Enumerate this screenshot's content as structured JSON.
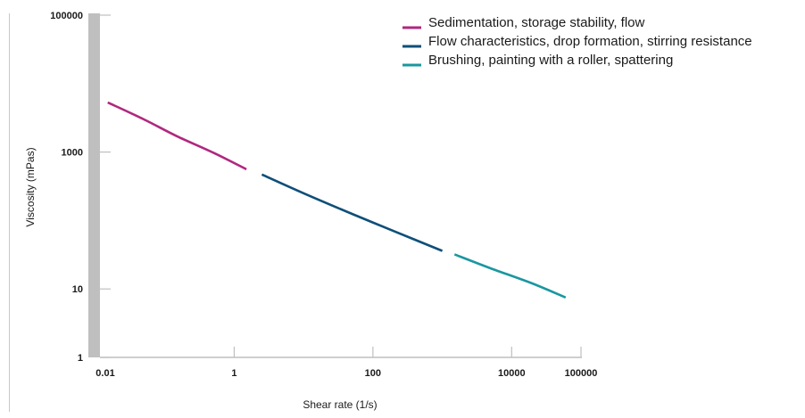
{
  "chart_data": {
    "type": "line",
    "xlabel": "Shear rate (1/s)",
    "ylabel": "Viscosity (mPas)",
    "x_scale": "log",
    "y_scale": "log",
    "xlim": [
      0.01,
      100000
    ],
    "ylim": [
      1,
      100000
    ],
    "x_ticks": [
      0.01,
      1,
      100,
      10000,
      100000
    ],
    "x_tick_labels": [
      "0.01",
      "1",
      "100",
      "10000",
      "100000"
    ],
    "y_ticks": [
      1,
      10,
      1000,
      100000
    ],
    "y_tick_labels": [
      "1",
      "10",
      "1000",
      "100000"
    ],
    "grid": false,
    "legend_position": "top-right",
    "series": [
      {
        "name": "Sedimentation, storage stability, flow",
        "color": "#b0287f",
        "x": [
          0.015,
          0.05,
          0.15,
          0.5,
          1.5
        ],
        "y": [
          5300,
          3000,
          1700,
          980,
          560
        ]
      },
      {
        "name": "Flow characteristics, drop formation, stirring resistance",
        "color": "#0e4f79",
        "x": [
          2.5,
          10,
          50,
          200,
          1000
        ],
        "y": [
          470,
          250,
          125,
          70,
          36
        ]
      },
      {
        "name": "Brushing, painting with a roller, spattering",
        "color": "#1a97a0",
        "x": [
          1500,
          5000,
          20000,
          60000
        ],
        "y": [
          32,
          20,
          12,
          7.5
        ]
      }
    ]
  }
}
